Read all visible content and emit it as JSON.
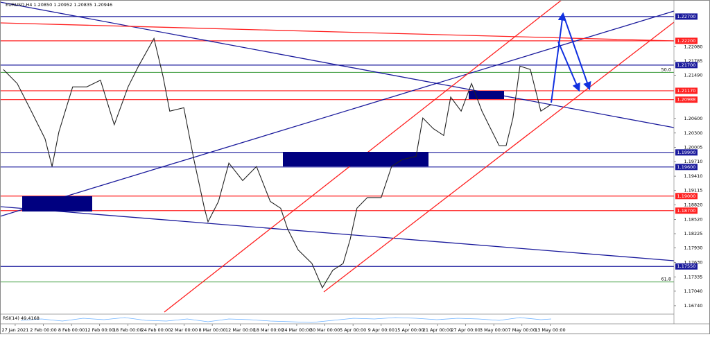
{
  "chart_data": {
    "type": "line",
    "title": "EURUSD,H4 1.20850 1.20952 1.20835 1.20946",
    "indicator": "RSI(14) 49.4168",
    "x": [
      -0.42,
      0.07,
      0.57,
      1.06,
      1.31,
      1.55,
      2.04,
      2.54,
      3.03,
      3.52,
      4.01,
      4.38,
      4.93,
      5.25,
      5.49,
      5.99,
      6.35,
      6.72,
      6.85,
      7.22,
      7.59,
      8.08,
      8.57,
      9.06,
      9.43,
      9.68,
      10.05,
      10.54,
      10.91,
      11.28,
      11.65,
      11.9,
      12.14,
      12.51,
      13.0,
      13.37,
      13.74,
      14.24,
      14.48,
      14.85,
      15.22,
      15.47,
      15.84,
      16.21,
      16.58,
      16.82,
      17.19,
      17.44,
      17.68,
      17.93,
      18.3,
      18.67,
      19.04
    ],
    "values": [
      1.2161,
      1.2132,
      1.2075,
      1.2018,
      1.1961,
      1.2032,
      1.2125,
      1.2125,
      1.2139,
      1.2047,
      1.2125,
      1.2168,
      1.2225,
      1.2147,
      1.2075,
      1.2082,
      1.1975,
      1.1875,
      1.1847,
      1.1889,
      1.1968,
      1.1932,
      1.1961,
      1.1889,
      1.1875,
      1.1832,
      1.1789,
      1.1761,
      1.1711,
      1.1747,
      1.1761,
      1.1811,
      1.1875,
      1.1897,
      1.1897,
      1.1961,
      1.1975,
      1.1982,
      1.2061,
      1.2039,
      1.2025,
      1.2104,
      1.2075,
      1.2132,
      1.2075,
      1.2047,
      1.2004,
      1.2004,
      1.2061,
      1.2168,
      1.2161,
      1.2075,
      1.2089
    ],
    "color": "#222222",
    "xlim": [
      -0.54,
      23.4
    ],
    "xticks": [
      {
        "value": 0,
        "label": "27 Jan 2021"
      },
      {
        "value": 1,
        "label": "2 Feb 00:00"
      },
      {
        "value": 2,
        "label": "8 Feb 00:00"
      },
      {
        "value": 3,
        "label": "12 Feb 00:00"
      },
      {
        "value": 4,
        "label": "18 Feb 00:00"
      },
      {
        "value": 5,
        "label": "24 Feb 00:00"
      },
      {
        "value": 6,
        "label": "2 Mar 00:00"
      },
      {
        "value": 7,
        "label": "8 Mar 00:00"
      },
      {
        "value": 8,
        "label": "12 Mar 00:00"
      },
      {
        "value": 9,
        "label": "18 Mar 00:00"
      },
      {
        "value": 10,
        "label": "24 Mar 00:00"
      },
      {
        "value": 11,
        "label": "30 Mar 00:00"
      },
      {
        "value": 12,
        "label": "5 Apr 00:00"
      },
      {
        "value": 13,
        "label": "9 Apr 00:00"
      },
      {
        "value": 14,
        "label": "15 Apr 00:00"
      },
      {
        "value": 15,
        "label": "21 Apr 00:00"
      },
      {
        "value": 16,
        "label": "27 Apr 00:00"
      },
      {
        "value": 17,
        "label": "3 May 00:00"
      },
      {
        "value": 18,
        "label": "7 May 00:00"
      },
      {
        "value": 19,
        "label": "13 May 00:00"
      }
    ],
    "ylim": [
      1.1661,
      1.2297
    ],
    "yticks": [
      {
        "value": 1.2208,
        "label": "1.22080"
      },
      {
        "value": 1.21785,
        "label": "1.21785"
      },
      {
        "value": 1.2149,
        "label": "1.21490"
      },
      {
        "value": 1.206,
        "label": "1.20600"
      },
      {
        "value": 1.203,
        "label": "1.20300"
      },
      {
        "value": 1.20005,
        "label": "1.20005"
      },
      {
        "value": 1.1971,
        "label": "1.19710"
      },
      {
        "value": 1.1941,
        "label": "1.19410"
      },
      {
        "value": 1.19115,
        "label": "1.19115"
      },
      {
        "value": 1.1882,
        "label": "1.18820"
      },
      {
        "value": 1.1852,
        "label": "1.18520"
      },
      {
        "value": 1.18225,
        "label": "1.18225"
      },
      {
        "value": 1.1793,
        "label": "1.17930"
      },
      {
        "value": 1.1763,
        "label": "1.17630"
      },
      {
        "value": 1.17335,
        "label": "1.17335"
      },
      {
        "value": 1.1704,
        "label": "1.17040"
      },
      {
        "value": 1.1674,
        "label": "1.16740"
      }
    ],
    "levels": [
      {
        "value": 1.227,
        "label": "1.22700",
        "color": "#1a1a9c"
      },
      {
        "value": 1.222,
        "label": "1.22200",
        "color": "#ff2020"
      },
      {
        "value": 1.217,
        "label": "1.21700",
        "color": "#1a1a9c"
      },
      {
        "value": 1.2117,
        "label": "1.21170",
        "color": "#ff2020"
      },
      {
        "value": 1.20988,
        "label": "1.20988",
        "color": "#ff2020"
      },
      {
        "value": 1.199,
        "label": "1.19900",
        "color": "#1a1a9c"
      },
      {
        "value": 1.196,
        "label": "1.19600",
        "color": "#1a1a9c"
      },
      {
        "value": 1.19,
        "label": "1.19000",
        "color": "#ff2020"
      },
      {
        "value": 1.187,
        "label": "1.18700",
        "color": "#ff2020"
      },
      {
        "value": 1.1755,
        "label": "1.17550",
        "color": "#1a1a9c"
      }
    ],
    "fib_levels": [
      {
        "value": 1.2155,
        "label": "50.0",
        "color": "#3a9a3a"
      },
      {
        "value": 1.1723,
        "label": "61.8",
        "color": "#3a9a3a"
      }
    ]
  }
}
